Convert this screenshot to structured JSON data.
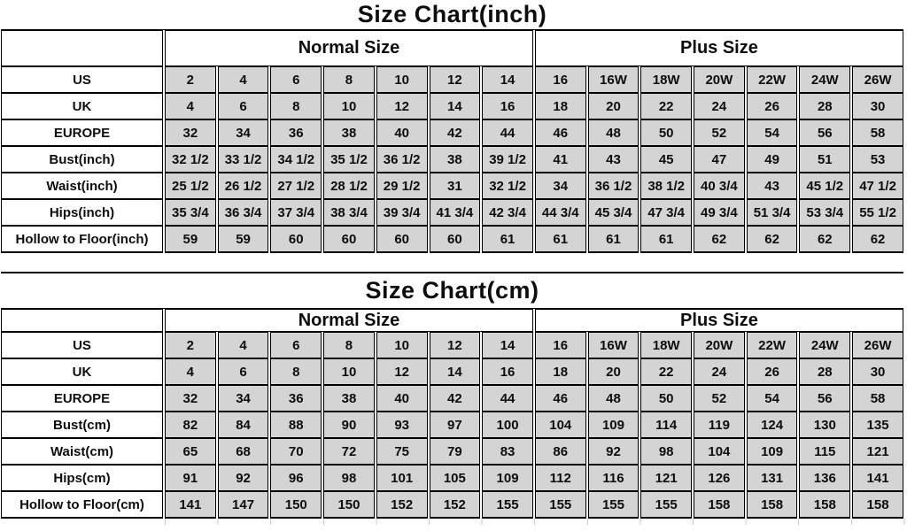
{
  "colors": {
    "cell_fill": "#d4d4d4",
    "border": "#000000",
    "text": "#0d0d0d",
    "background": "#ffffff",
    "gridline_stub": "#c9c9c9"
  },
  "tables": [
    {
      "key": "inch",
      "title": "Size Chart(inch)",
      "group_headers": [
        "Normal Size",
        "Plus Size"
      ],
      "rows": [
        {
          "label": "US",
          "values": [
            "2",
            "4",
            "6",
            "8",
            "10",
            "12",
            "14",
            "16",
            "16W",
            "18W",
            "20W",
            "22W",
            "24W",
            "26W"
          ]
        },
        {
          "label": "UK",
          "values": [
            "4",
            "6",
            "8",
            "10",
            "12",
            "14",
            "16",
            "18",
            "20",
            "22",
            "24",
            "26",
            "28",
            "30"
          ]
        },
        {
          "label": "EUROPE",
          "values": [
            "32",
            "34",
            "36",
            "38",
            "40",
            "42",
            "44",
            "46",
            "48",
            "50",
            "52",
            "54",
            "56",
            "58"
          ]
        },
        {
          "label": "Bust(inch)",
          "values": [
            "32 1/2",
            "33 1/2",
            "34 1/2",
            "35 1/2",
            "36 1/2",
            "38",
            "39 1/2",
            "41",
            "43",
            "45",
            "47",
            "49",
            "51",
            "53"
          ]
        },
        {
          "label": "Waist(inch)",
          "values": [
            "25 1/2",
            "26 1/2",
            "27 1/2",
            "28 1/2",
            "29 1/2",
            "31",
            "32 1/2",
            "34",
            "36 1/2",
            "38 1/2",
            "40 3/4",
            "43",
            "45 1/2",
            "47 1/2"
          ]
        },
        {
          "label": "Hips(inch)",
          "values": [
            "35 3/4",
            "36 3/4",
            "37 3/4",
            "38 3/4",
            "39 3/4",
            "41 3/4",
            "42 3/4",
            "44 3/4",
            "45 3/4",
            "47 3/4",
            "49 3/4",
            "51 3/4",
            "53 3/4",
            "55 1/2"
          ]
        },
        {
          "label": "Hollow to Floor(inch)",
          "values": [
            "59",
            "59",
            "60",
            "60",
            "60",
            "60",
            "61",
            "61",
            "61",
            "61",
            "62",
            "62",
            "62",
            "62"
          ]
        }
      ]
    },
    {
      "key": "cm",
      "title": "Size Chart(cm)",
      "group_headers": [
        "Normal Size",
        "Plus Size"
      ],
      "rows": [
        {
          "label": "US",
          "values": [
            "2",
            "4",
            "6",
            "8",
            "10",
            "12",
            "14",
            "16",
            "16W",
            "18W",
            "20W",
            "22W",
            "24W",
            "26W"
          ]
        },
        {
          "label": "UK",
          "values": [
            "4",
            "6",
            "8",
            "10",
            "12",
            "14",
            "16",
            "18",
            "20",
            "22",
            "24",
            "26",
            "28",
            "30"
          ]
        },
        {
          "label": "EUROPE",
          "values": [
            "32",
            "34",
            "36",
            "38",
            "40",
            "42",
            "44",
            "46",
            "48",
            "50",
            "52",
            "54",
            "56",
            "58"
          ]
        },
        {
          "label": "Bust(cm)",
          "values": [
            "82",
            "84",
            "88",
            "90",
            "93",
            "97",
            "100",
            "104",
            "109",
            "114",
            "119",
            "124",
            "130",
            "135"
          ]
        },
        {
          "label": "Waist(cm)",
          "values": [
            "65",
            "68",
            "70",
            "72",
            "75",
            "79",
            "83",
            "86",
            "92",
            "98",
            "104",
            "109",
            "115",
            "121"
          ]
        },
        {
          "label": "Hips(cm)",
          "values": [
            "91",
            "92",
            "96",
            "98",
            "101",
            "105",
            "109",
            "112",
            "116",
            "121",
            "126",
            "131",
            "136",
            "141"
          ]
        },
        {
          "label": "Hollow to Floor(cm)",
          "values": [
            "141",
            "147",
            "150",
            "150",
            "152",
            "152",
            "155",
            "155",
            "155",
            "155",
            "158",
            "158",
            "158",
            "158"
          ]
        }
      ]
    }
  ]
}
